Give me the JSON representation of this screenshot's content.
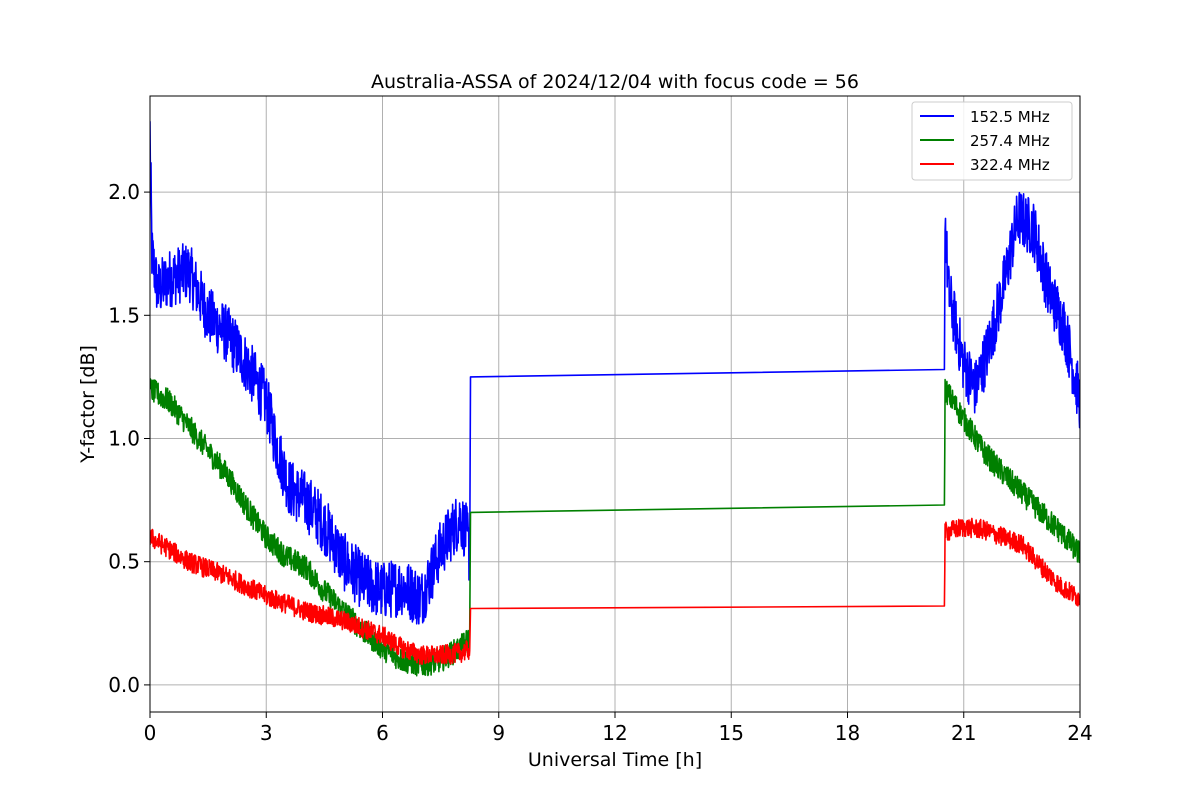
{
  "chart_data": {
    "type": "line",
    "title": "Australia-ASSA of 2024/12/04 with focus code = 56",
    "xlabel": "Universal Time [h]",
    "ylabel": "Y-factor [dB]",
    "xlim": [
      0,
      24
    ],
    "ylim": [
      -0.11,
      2.39
    ],
    "xticks": [
      0,
      3,
      6,
      9,
      12,
      15,
      18,
      21,
      24
    ],
    "xtick_labels": [
      "0",
      "3",
      "6",
      "9",
      "12",
      "15",
      "18",
      "21",
      "24"
    ],
    "yticks": [
      0.0,
      0.5,
      1.0,
      1.5,
      2.0
    ],
    "ytick_labels": [
      "0.0",
      "0.5",
      "1.0",
      "1.5",
      "2.0"
    ],
    "grid": true,
    "legend_position": "top-right",
    "series": [
      {
        "name": "152.5 MHz",
        "color": "#0000ff",
        "noise": 0.12,
        "x": [
          0.0,
          0.05,
          0.2,
          0.5,
          1.0,
          1.5,
          2.0,
          2.5,
          3.0,
          3.3,
          3.6,
          4.0,
          4.5,
          5.0,
          5.5,
          6.0,
          6.5,
          7.0,
          7.5,
          8.0,
          8.2,
          8.25,
          8.27,
          20.5,
          20.52,
          20.6,
          21.0,
          21.3,
          21.6,
          22.0,
          22.4,
          22.8,
          23.2,
          23.6,
          24.0
        ],
        "y": [
          2.25,
          1.75,
          1.6,
          1.65,
          1.68,
          1.5,
          1.42,
          1.3,
          1.15,
          0.95,
          0.8,
          0.75,
          0.65,
          0.5,
          0.42,
          0.38,
          0.4,
          0.35,
          0.55,
          0.68,
          0.6,
          0.5,
          1.25,
          1.28,
          1.9,
          1.6,
          1.3,
          1.2,
          1.35,
          1.6,
          1.9,
          1.85,
          1.6,
          1.45,
          1.15
        ]
      },
      {
        "name": "257.4 MHz",
        "color": "#008000",
        "noise": 0.05,
        "x": [
          0.0,
          0.5,
          1.0,
          1.5,
          2.0,
          2.5,
          3.0,
          3.5,
          4.0,
          4.5,
          5.0,
          5.5,
          6.0,
          6.5,
          7.0,
          7.5,
          8.0,
          8.2,
          8.25,
          8.27,
          20.5,
          20.52,
          21.0,
          21.5,
          22.0,
          22.5,
          23.0,
          23.5,
          24.0
        ],
        "y": [
          1.2,
          1.15,
          1.05,
          0.95,
          0.85,
          0.72,
          0.6,
          0.52,
          0.48,
          0.38,
          0.3,
          0.22,
          0.15,
          0.1,
          0.08,
          0.1,
          0.15,
          0.18,
          0.2,
          0.7,
          0.73,
          1.2,
          1.08,
          0.95,
          0.86,
          0.78,
          0.7,
          0.62,
          0.53
        ]
      },
      {
        "name": "322.4 MHz",
        "color": "#ff0000",
        "noise": 0.04,
        "x": [
          0.0,
          0.5,
          1.0,
          1.5,
          2.0,
          2.5,
          3.0,
          3.5,
          4.0,
          4.5,
          5.0,
          5.5,
          6.0,
          6.5,
          7.0,
          7.5,
          8.0,
          8.2,
          8.25,
          8.27,
          20.5,
          20.52,
          21.0,
          21.5,
          22.0,
          22.5,
          23.0,
          23.5,
          24.0
        ],
        "y": [
          0.6,
          0.55,
          0.5,
          0.47,
          0.44,
          0.4,
          0.36,
          0.33,
          0.3,
          0.28,
          0.26,
          0.23,
          0.2,
          0.15,
          0.12,
          0.12,
          0.13,
          0.14,
          0.14,
          0.31,
          0.32,
          0.62,
          0.64,
          0.63,
          0.6,
          0.57,
          0.48,
          0.4,
          0.35
        ]
      }
    ]
  }
}
